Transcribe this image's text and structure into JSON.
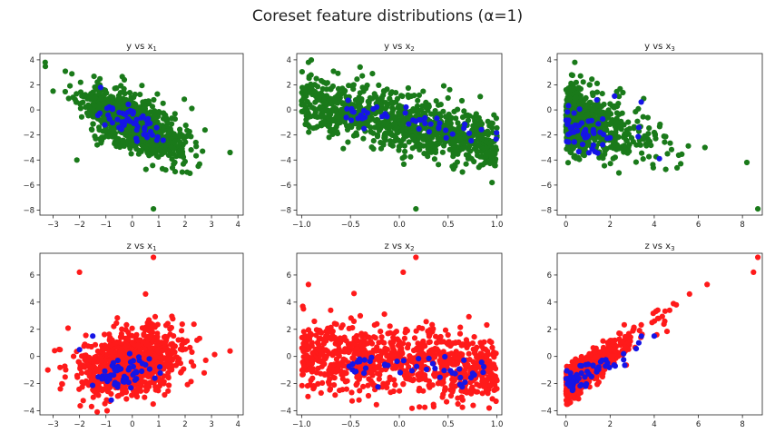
{
  "figure": {
    "suptitle": "Coreset feature distributions (α=1)"
  },
  "colors": {
    "green_points": "#1a7a1a",
    "red_points": "#ff1a1a",
    "coreset_points": "#1515e6",
    "axis": "#222222"
  },
  "chart_data": [
    {
      "type": "scatter",
      "title": "y vs x₁",
      "title_base": "y vs x",
      "title_sub": "1",
      "xlim": [
        -3.5,
        4.2
      ],
      "ylim": [
        -8.4,
        4.5
      ],
      "xticks": [
        -3,
        -2,
        -1,
        0,
        1,
        2,
        3,
        4
      ],
      "xtick_labels": [
        "−3",
        "−2",
        "−1",
        "0",
        "1",
        "2",
        "3",
        "4"
      ],
      "yticks": [
        -8,
        -6,
        -4,
        -2,
        0,
        2,
        4
      ],
      "ytick_labels": [
        "−8",
        "−6",
        "−4",
        "−2",
        "0",
        "2",
        "4"
      ],
      "series": [
        {
          "color": "#1a7a1a",
          "gen": {
            "kind": "lin",
            "n": 900,
            "seed": 11,
            "xm": 0,
            "xs": 0.95,
            "a": -0.9,
            "b": -1.0,
            "ns": 1.05
          },
          "points": [
            [
              -3.3,
              3.8
            ],
            [
              3.7,
              -3.4
            ],
            [
              0.8,
              -7.9
            ],
            [
              -2.1,
              -4.0
            ],
            [
              -3.0,
              1.5
            ]
          ]
        },
        {
          "color": "#1515e6",
          "gen": {
            "kind": "lin",
            "n": 55,
            "seed": 12,
            "xm": -0.1,
            "xs": 0.55,
            "a": -0.9,
            "b": -1.0,
            "ns": 0.55
          },
          "points": [
            [
              -1.2,
              1.8
            ]
          ]
        }
      ]
    },
    {
      "type": "scatter",
      "title": "y vs x₂",
      "title_base": "y vs x",
      "title_sub": "2",
      "xlim": [
        -1.05,
        1.05
      ],
      "ylim": [
        -8.4,
        4.5
      ],
      "xticks": [
        -1.0,
        -0.5,
        0.0,
        0.5,
        1.0
      ],
      "xtick_labels": [
        "−1.0",
        "−0.5",
        "0.0",
        "0.5",
        "1.0"
      ],
      "yticks": [
        -8,
        -6,
        -4,
        -2,
        0,
        2,
        4
      ],
      "ytick_labels": [
        "−8",
        "−6",
        "−4",
        "−2",
        "0",
        "2",
        "4"
      ],
      "series": [
        {
          "color": "#1a7a1a",
          "gen": {
            "kind": "unif",
            "n": 900,
            "seed": 21,
            "x0": -1.0,
            "x1": 1.0,
            "a": -1.8,
            "b": -1.0,
            "ns": 1.15
          },
          "points": [
            [
              -0.93,
              3.8
            ],
            [
              0.17,
              -7.9
            ],
            [
              0.95,
              -5.8
            ]
          ]
        },
        {
          "color": "#1515e6",
          "gen": {
            "kind": "unif",
            "n": 45,
            "seed": 22,
            "x0": -0.55,
            "x1": 1.0,
            "a": -1.4,
            "b": -0.6,
            "ns": 0.45
          },
          "points": []
        }
      ]
    },
    {
      "type": "scatter",
      "title": "y vs x₃",
      "title_base": "y vs x",
      "title_sub": "3",
      "xlim": [
        -0.4,
        8.9
      ],
      "ylim": [
        -8.4,
        4.5
      ],
      "xticks": [
        0,
        2,
        4,
        6,
        8
      ],
      "xtick_labels": [
        "0",
        "2",
        "4",
        "6",
        "8"
      ],
      "yticks": [
        -8,
        -6,
        -4,
        -2,
        0,
        2,
        4
      ],
      "ytick_labels": [
        "−8",
        "−6",
        "−4",
        "−2",
        "0",
        "2",
        "4"
      ],
      "series": [
        {
          "color": "#1a7a1a",
          "gen": {
            "kind": "exp",
            "n": 850,
            "seed": 31,
            "scale": 1.05,
            "a": -0.45,
            "b": -0.6,
            "ns": 1.25
          },
          "points": [
            [
              0.4,
              3.8
            ],
            [
              8.7,
              -7.9
            ],
            [
              8.2,
              -4.2
            ],
            [
              6.3,
              -3.0
            ],
            [
              5.2,
              -4.3
            ],
            [
              4.6,
              -3.5
            ]
          ]
        },
        {
          "color": "#1515e6",
          "gen": {
            "kind": "exp",
            "n": 55,
            "seed": 32,
            "scale": 0.85,
            "a": -0.5,
            "b": -1.0,
            "ns": 0.9
          },
          "points": [
            [
              1.4,
              0.8
            ],
            [
              2.2,
              1.1
            ],
            [
              3.3,
              -1.4
            ]
          ]
        }
      ]
    },
    {
      "type": "scatter",
      "title": "z vs x₁",
      "title_base": "z vs x",
      "title_sub": "1",
      "xlim": [
        -3.5,
        4.2
      ],
      "ylim": [
        -4.3,
        7.6
      ],
      "xticks": [
        -3,
        -2,
        -1,
        0,
        1,
        2,
        3,
        4
      ],
      "xtick_labels": [
        "−3",
        "−2",
        "−1",
        "0",
        "1",
        "2",
        "3",
        "4"
      ],
      "yticks": [
        -4,
        -2,
        0,
        2,
        4,
        6
      ],
      "ytick_labels": [
        "−4",
        "−2",
        "0",
        "2",
        "4",
        "6"
      ],
      "series": [
        {
          "color": "#ff1a1a",
          "gen": {
            "kind": "lin",
            "n": 900,
            "seed": 41,
            "xm": 0,
            "xs": 0.95,
            "a": 0.35,
            "b": -0.4,
            "ns": 1.2
          },
          "points": [
            [
              0.8,
              7.3
            ],
            [
              -2.0,
              6.2
            ],
            [
              3.7,
              0.4
            ],
            [
              0.5,
              4.6
            ],
            [
              -3.2,
              -1.0
            ]
          ]
        },
        {
          "color": "#1515e6",
          "gen": {
            "kind": "lin",
            "n": 55,
            "seed": 42,
            "xm": -0.4,
            "xs": 0.6,
            "a": 0.3,
            "b": -1.0,
            "ns": 0.6
          },
          "points": [
            [
              -1.5,
              1.5
            ],
            [
              -2.0,
              0.5
            ]
          ]
        }
      ]
    },
    {
      "type": "scatter",
      "title": "z vs x₂",
      "title_base": "z vs x",
      "title_sub": "2",
      "xlim": [
        -1.05,
        1.05
      ],
      "ylim": [
        -4.3,
        7.6
      ],
      "xticks": [
        -1.0,
        -0.5,
        0.0,
        0.5,
        1.0
      ],
      "xtick_labels": [
        "−1.0",
        "−0.5",
        "0.0",
        "0.5",
        "1.0"
      ],
      "yticks": [
        -4,
        -2,
        0,
        2,
        4,
        6
      ],
      "ytick_labels": [
        "−4",
        "−2",
        "0",
        "2",
        "4",
        "6"
      ],
      "series": [
        {
          "color": "#ff1a1a",
          "gen": {
            "kind": "unif",
            "n": 900,
            "seed": 51,
            "x0": -1.0,
            "x1": 1.0,
            "a": -0.5,
            "b": -0.3,
            "ns": 1.25
          },
          "points": [
            [
              0.17,
              7.3
            ],
            [
              0.04,
              6.2
            ],
            [
              -0.93,
              5.3
            ],
            [
              0.92,
              -3.8
            ],
            [
              0.6,
              -3.5
            ]
          ]
        },
        {
          "color": "#1515e6",
          "gen": {
            "kind": "unif",
            "n": 45,
            "seed": 52,
            "x0": -0.55,
            "x1": 1.0,
            "a": -0.3,
            "b": -0.8,
            "ns": 0.5
          },
          "points": []
        }
      ]
    },
    {
      "type": "scatter",
      "title": "z vs x₃",
      "title_base": "z vs x",
      "title_sub": "3",
      "xlim": [
        -0.4,
        8.9
      ],
      "ylim": [
        -4.3,
        7.6
      ],
      "xticks": [
        0,
        2,
        4,
        6,
        8
      ],
      "xtick_labels": [
        "0",
        "2",
        "4",
        "6",
        "8"
      ],
      "yticks": [
        -4,
        -2,
        0,
        2,
        4,
        6
      ],
      "ytick_labels": [
        "−4",
        "−2",
        "0",
        "2",
        "4",
        "6"
      ],
      "series": [
        {
          "color": "#ff1a1a",
          "gen": {
            "kind": "exp",
            "n": 850,
            "seed": 61,
            "scale": 0.95,
            "a": 1.2,
            "b": -2.2,
            "ns": 0.55
          },
          "points": [
            [
              8.7,
              7.3
            ],
            [
              8.5,
              6.2
            ],
            [
              6.4,
              5.3
            ],
            [
              5.6,
              4.6
            ],
            [
              5.0,
              3.8
            ],
            [
              4.7,
              3.4
            ],
            [
              4.2,
              2.8
            ],
            [
              3.9,
              2.5
            ]
          ]
        },
        {
          "color": "#1515e6",
          "gen": {
            "kind": "exp",
            "n": 55,
            "seed": 62,
            "scale": 0.9,
            "a": 0.8,
            "b": -2.0,
            "ns": 0.45
          },
          "points": [
            [
              3.3,
              1.0
            ],
            [
              4.0,
              1.5
            ]
          ]
        }
      ]
    }
  ]
}
